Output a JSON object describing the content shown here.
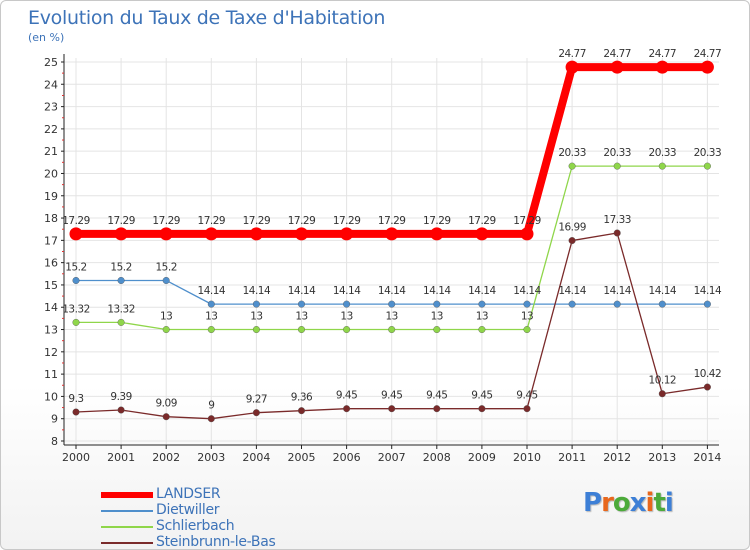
{
  "title": "Evolution du Taux de Taxe d'Habitation",
  "subtitle": "(en %)",
  "brand": "Proxiti",
  "brand_colors": [
    "#3d7fd6",
    "#e8671c",
    "#4caa3a",
    "#3d7fd6",
    "#e8671c",
    "#4caa3a",
    "#3d7fd6"
  ],
  "chart_data": {
    "type": "line",
    "title": "Evolution du Taux de Taxe d'Habitation",
    "ylabel": "(en %)",
    "xlabel": "",
    "x": [
      "2000",
      "2001",
      "2002",
      "2003",
      "2004",
      "2005",
      "2006",
      "2007",
      "2008",
      "2009",
      "2010",
      "2011",
      "2012",
      "2013",
      "2014"
    ],
    "ylim": [
      8,
      25
    ],
    "yticks": [
      "8",
      "9",
      "10",
      "11",
      "12",
      "13",
      "14",
      "15",
      "16",
      "17",
      "18",
      "19",
      "20",
      "21",
      "22",
      "23",
      "24",
      "25"
    ],
    "grid": true,
    "legend_position": "bottom-left",
    "series": [
      {
        "name": "LANDSER",
        "color": "#ff0000",
        "emphasis": "thick",
        "values": [
          17.29,
          17.29,
          17.29,
          17.29,
          17.29,
          17.29,
          17.29,
          17.29,
          17.29,
          17.29,
          17.29,
          24.77,
          24.77,
          24.77,
          24.77
        ],
        "labels": [
          "17.29",
          "17.29",
          "17.29",
          "17.29",
          "17.29",
          "17.29",
          "17.29",
          "17.29",
          "17.29",
          "17.29",
          "17.29",
          "24.77",
          "24.77",
          "24.77",
          "24.77"
        ]
      },
      {
        "name": "Dietwiller",
        "color": "#4f8fcc",
        "emphasis": "thin",
        "values": [
          15.2,
          15.2,
          15.2,
          14.14,
          14.14,
          14.14,
          14.14,
          14.14,
          14.14,
          14.14,
          14.14,
          14.14,
          14.14,
          14.14,
          14.14
        ],
        "labels": [
          "15.2",
          "15.2",
          "15.2",
          "14.14",
          "14.14",
          "14.14",
          "14.14",
          "14.14",
          "14.14",
          "14.14",
          "14.14",
          "14.14",
          "14.14",
          "14.14",
          "14.14"
        ]
      },
      {
        "name": "Schlierbach",
        "color": "#8fd64a",
        "emphasis": "thin",
        "values": [
          13.32,
          13.32,
          13,
          13,
          13,
          13,
          13,
          13,
          13,
          13,
          13,
          20.33,
          20.33,
          20.33,
          20.33
        ],
        "labels": [
          "13.32",
          "13.32",
          "13",
          "13",
          "13",
          "13",
          "13",
          "13",
          "13",
          "13",
          "13",
          "20.33",
          "20.33",
          "20.33",
          "20.33"
        ]
      },
      {
        "name": "Steinbrunn-le-Bas",
        "color": "#7a2a2a",
        "emphasis": "thin",
        "values": [
          9.3,
          9.39,
          9.09,
          9,
          9.27,
          9.36,
          9.45,
          9.45,
          9.45,
          9.45,
          9.45,
          16.99,
          17.33,
          10.12,
          10.42
        ],
        "labels": [
          "9.3",
          "9.39",
          "9.09",
          "9",
          "9.27",
          "9.36",
          "9.45",
          "9.45",
          "9.45",
          "9.45",
          "9.45",
          "16.99",
          "17.33",
          "10.12",
          "10.42"
        ]
      }
    ]
  }
}
